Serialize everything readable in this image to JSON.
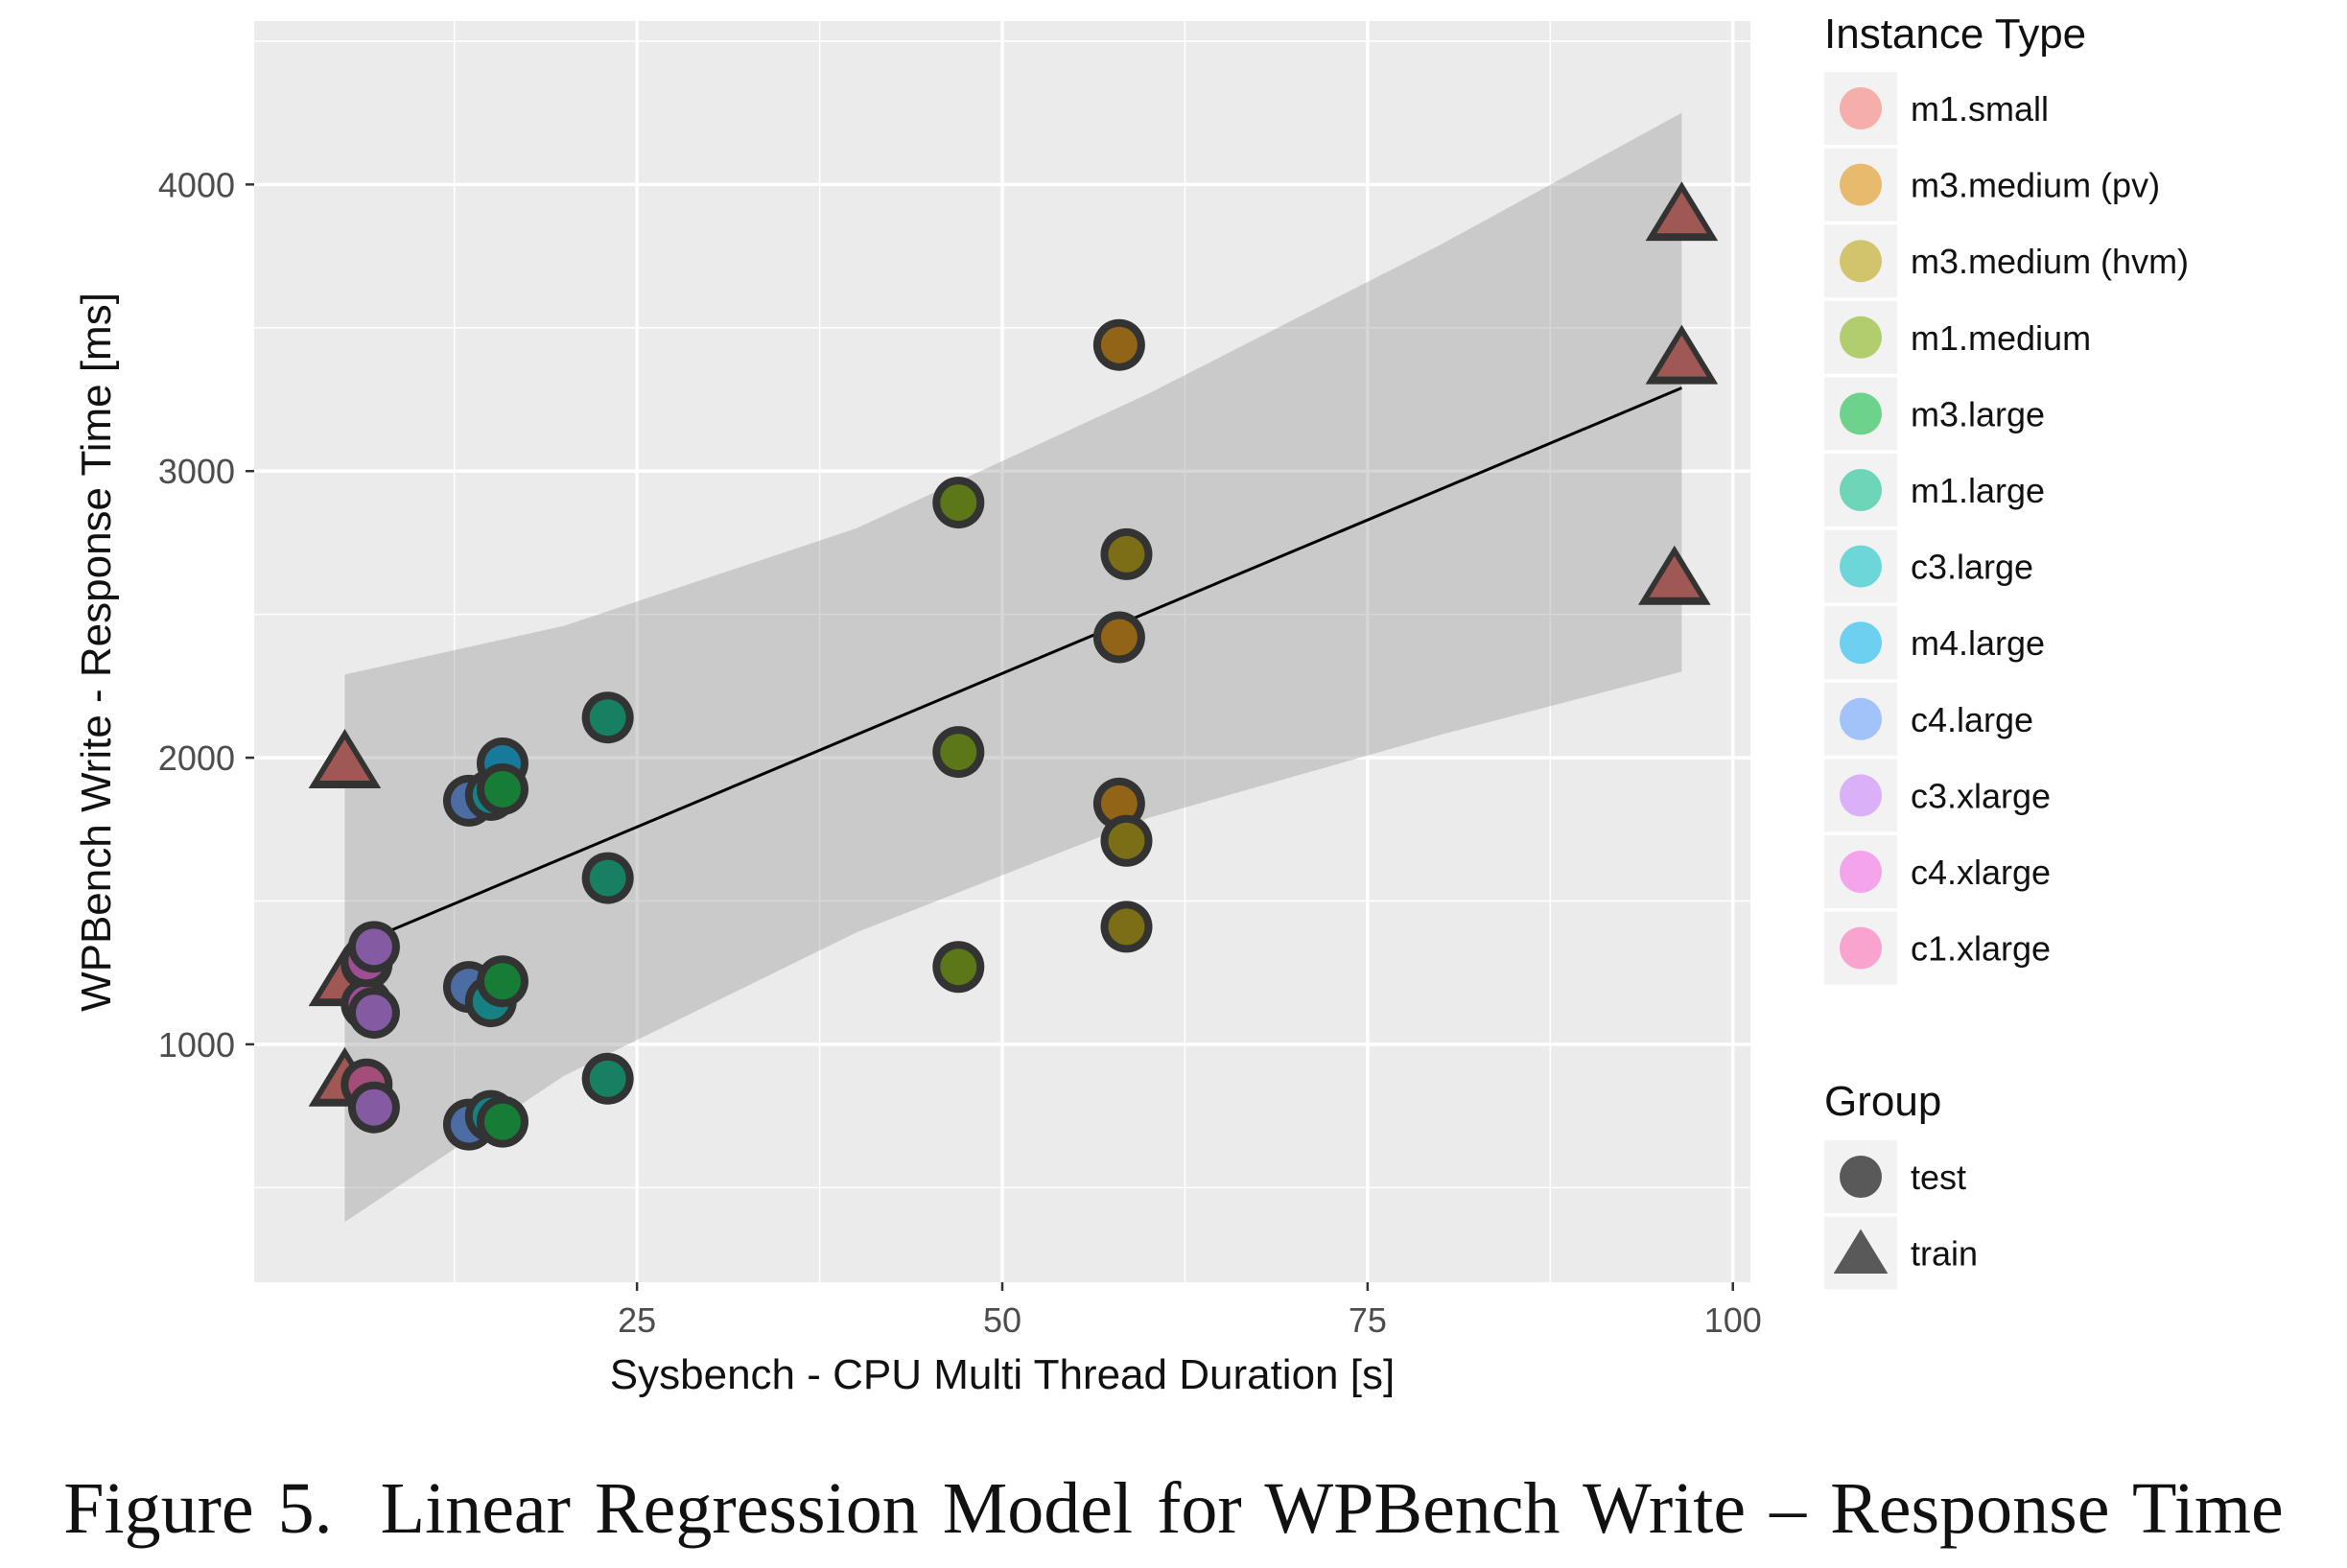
{
  "caption": "Figure 5.  Linear Regression Model for WPBench Write – Response Time",
  "chart_data": {
    "type": "scatter",
    "title": "",
    "xlabel": "Sysbench - CPU Multi Thread Duration [s]",
    "ylabel": "WPBench Write - Response Time [ms]",
    "xlim": [
      -1.2,
      101.2
    ],
    "ylim": [
      170,
      4570
    ],
    "xticks": [
      25,
      50,
      75,
      100
    ],
    "yticks": [
      1000,
      2000,
      3000,
      4000
    ],
    "grid": true,
    "legend_position": "right",
    "legend": {
      "instance_title": "Instance Type",
      "group_title": "Group",
      "groups": [
        {
          "name": "test",
          "shape": "circle"
        },
        {
          "name": "train",
          "shape": "triangle"
        }
      ]
    },
    "instance_types": [
      {
        "name": "m1.small",
        "color": "#F8766D"
      },
      {
        "name": "m3.medium (pv)",
        "color": "#DE8C00"
      },
      {
        "name": "m3.medium (hvm)",
        "color": "#B79F00"
      },
      {
        "name": "m1.medium",
        "color": "#7CAE00"
      },
      {
        "name": "m3.large",
        "color": "#00BA38"
      },
      {
        "name": "m1.large",
        "color": "#00C08B"
      },
      {
        "name": "c3.large",
        "color": "#00BFC4"
      },
      {
        "name": "m4.large",
        "color": "#00B4F0"
      },
      {
        "name": "c4.large",
        "color": "#619CFF"
      },
      {
        "name": "c3.xlarge",
        "color": "#C77CFF"
      },
      {
        "name": "c4.xlarge",
        "color": "#F564E3"
      },
      {
        "name": "c1.xlarge",
        "color": "#FF64B0"
      }
    ],
    "regression": {
      "x_start": 5,
      "x_end": 96.5,
      "y_start": 1330,
      "y_end": 3290,
      "band": [
        {
          "x": 5,
          "lo": 380,
          "hi": 2290
        },
        {
          "x": 20,
          "lo": 890,
          "hi": 2460
        },
        {
          "x": 40,
          "lo": 1390,
          "hi": 2800
        },
        {
          "x": 60,
          "lo": 1790,
          "hi": 3270
        },
        {
          "x": 80,
          "lo": 2080,
          "hi": 3790
        },
        {
          "x": 96.5,
          "lo": 2300,
          "hi": 4250
        }
      ]
    },
    "points": [
      {
        "x": 5,
        "y": 1980,
        "type": "m1.small",
        "group": "train"
      },
      {
        "x": 5,
        "y": 1220,
        "type": "m1.small",
        "group": "train"
      },
      {
        "x": 5,
        "y": 870,
        "type": "m1.small",
        "group": "train"
      },
      {
        "x": 96.5,
        "y": 3890,
        "type": "m1.small",
        "group": "train"
      },
      {
        "x": 96.5,
        "y": 3390,
        "type": "m1.small",
        "group": "train"
      },
      {
        "x": 96,
        "y": 2620,
        "type": "m1.small",
        "group": "train"
      },
      {
        "x": 6.5,
        "y": 1280,
        "type": "c1.xlarge",
        "group": "test"
      },
      {
        "x": 6.5,
        "y": 860,
        "type": "c1.xlarge",
        "group": "test"
      },
      {
        "x": 6.5,
        "y": 1140,
        "type": "c4.xlarge",
        "group": "test"
      },
      {
        "x": 6.5,
        "y": 1290,
        "type": "c4.xlarge",
        "group": "test"
      },
      {
        "x": 7,
        "y": 1340,
        "type": "c3.xlarge",
        "group": "test"
      },
      {
        "x": 7,
        "y": 1110,
        "type": "c3.xlarge",
        "group": "test"
      },
      {
        "x": 7,
        "y": 780,
        "type": "c3.xlarge",
        "group": "test"
      },
      {
        "x": 13.5,
        "y": 1850,
        "type": "c4.large",
        "group": "test"
      },
      {
        "x": 13.5,
        "y": 1200,
        "type": "c4.large",
        "group": "test"
      },
      {
        "x": 13.5,
        "y": 720,
        "type": "c4.large",
        "group": "test"
      },
      {
        "x": 15,
        "y": 1870,
        "type": "c3.large",
        "group": "test"
      },
      {
        "x": 15,
        "y": 1150,
        "type": "c3.large",
        "group": "test"
      },
      {
        "x": 15,
        "y": 750,
        "type": "c3.large",
        "group": "test"
      },
      {
        "x": 15.8,
        "y": 1980,
        "type": "m4.large",
        "group": "test"
      },
      {
        "x": 15.8,
        "y": 1890,
        "type": "m3.large",
        "group": "test"
      },
      {
        "x": 15.8,
        "y": 1220,
        "type": "m3.large",
        "group": "test"
      },
      {
        "x": 15.8,
        "y": 730,
        "type": "m3.large",
        "group": "test"
      },
      {
        "x": 23,
        "y": 2140,
        "type": "m1.large",
        "group": "test"
      },
      {
        "x": 23,
        "y": 1580,
        "type": "m1.large",
        "group": "test"
      },
      {
        "x": 23,
        "y": 880,
        "type": "m1.large",
        "group": "test"
      },
      {
        "x": 47,
        "y": 2890,
        "type": "m1.medium",
        "group": "test"
      },
      {
        "x": 47,
        "y": 2020,
        "type": "m1.medium",
        "group": "test"
      },
      {
        "x": 47,
        "y": 1270,
        "type": "m1.medium",
        "group": "test"
      },
      {
        "x": 58,
        "y": 3440,
        "type": "m3.medium (pv)",
        "group": "test"
      },
      {
        "x": 58,
        "y": 2420,
        "type": "m3.medium (pv)",
        "group": "test"
      },
      {
        "x": 58,
        "y": 1840,
        "type": "m3.medium (pv)",
        "group": "test"
      },
      {
        "x": 58.5,
        "y": 2710,
        "type": "m3.medium (hvm)",
        "group": "test"
      },
      {
        "x": 58.5,
        "y": 1710,
        "type": "m3.medium (hvm)",
        "group": "test"
      },
      {
        "x": 58.5,
        "y": 1410,
        "type": "m3.medium (hvm)",
        "group": "test"
      }
    ]
  }
}
